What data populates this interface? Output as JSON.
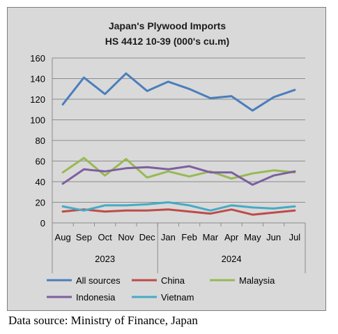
{
  "chart_data": {
    "type": "line",
    "title": "Japan's Plywood Imports",
    "subtitle": "HS 4412 10-39  (000's cu.m)",
    "categories": [
      "Aug",
      "Sep",
      "Oct",
      "Nov",
      "Dec",
      "Jan",
      "Feb",
      "Mar",
      "Apr",
      "May",
      "Jun",
      "Jul"
    ],
    "year_groups": [
      {
        "label": "2023",
        "start": 0,
        "end": 4
      },
      {
        "label": "2024",
        "start": 5,
        "end": 11
      }
    ],
    "ylim": [
      0,
      160
    ],
    "yticks": [
      0,
      20,
      40,
      60,
      80,
      100,
      120,
      140,
      160
    ],
    "grid": true,
    "legend_position": "bottom",
    "series": [
      {
        "name": "All sources",
        "color": "#4a7ebb",
        "values": [
          115,
          141,
          125,
          145,
          128,
          137,
          130,
          121,
          123,
          109,
          122,
          129
        ]
      },
      {
        "name": "China",
        "color": "#be4b48",
        "values": [
          11,
          13,
          11,
          12,
          12,
          13,
          11,
          9,
          13,
          8,
          10,
          12
        ]
      },
      {
        "name": "Malaysia",
        "color": "#98b954",
        "values": [
          49,
          63,
          46,
          62,
          44,
          50,
          45,
          50,
          43,
          48,
          51,
          49
        ]
      },
      {
        "name": "Indonesia",
        "color": "#7d5fa0",
        "values": [
          38,
          52,
          50,
          53,
          54,
          52,
          55,
          49,
          49,
          37,
          46,
          50
        ]
      },
      {
        "name": "Vietnam",
        "color": "#46aac5",
        "values": [
          16,
          12,
          17,
          17,
          18,
          20,
          17,
          12,
          17,
          15,
          14,
          16
        ]
      }
    ]
  },
  "source_note": "Data source: Ministry of Finance, Japan"
}
